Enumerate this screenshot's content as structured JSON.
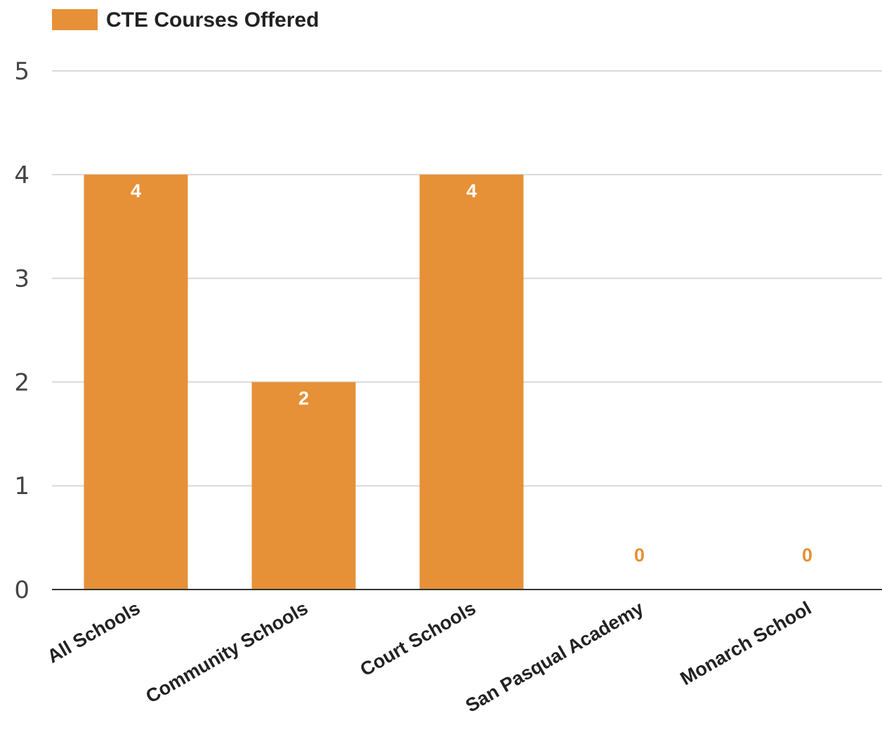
{
  "chart_data": {
    "type": "bar",
    "categories": [
      "All Schools",
      "Community Schools",
      "Court Schools",
      "San Pasqual Academy",
      "Monarch School"
    ],
    "series": [
      {
        "name": "CTE Courses Offered",
        "values": [
          4,
          2,
          4,
          0,
          0
        ]
      }
    ],
    "data_labels": [
      "4",
      "2",
      "4",
      "0",
      "0"
    ],
    "y_ticks": [
      "0",
      "1",
      "2",
      "3",
      "4",
      "5"
    ],
    "ylim": [
      0,
      5
    ],
    "grid": true,
    "legend_position": "top-left",
    "colors": {
      "bar": "#e69138",
      "label_inside": "#ffffff",
      "label_outside": "#e69138",
      "grid": "#d9d9d9",
      "axis": "#333333"
    }
  }
}
